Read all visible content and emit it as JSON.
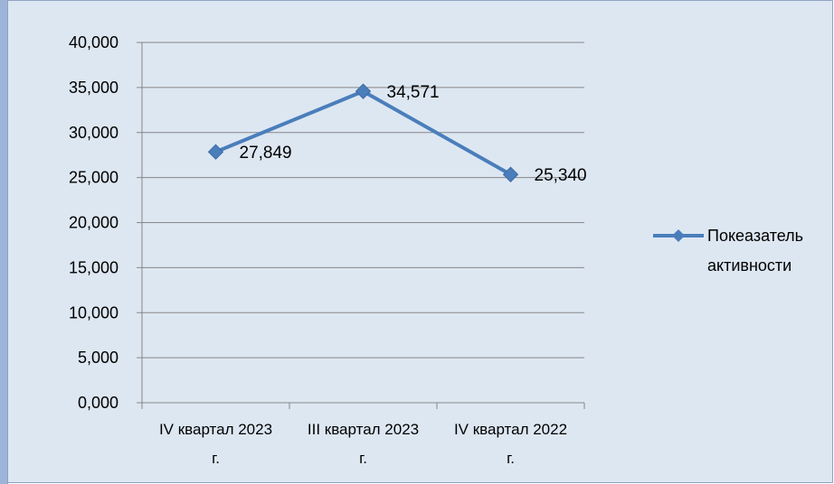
{
  "chart_data": {
    "type": "line",
    "categories": [
      "IV квартал 2023 г.",
      "III квартал 2023 г.",
      "IV квартал 2022 г."
    ],
    "category_lines": [
      [
        "IV квартал 2023",
        "г."
      ],
      [
        "III квартал 2023",
        "г."
      ],
      [
        "IV квартал 2022",
        "г."
      ]
    ],
    "series": [
      {
        "name": "Покеазатель активности",
        "name_lines": [
          "Покеазатель",
          "активности"
        ],
        "values": [
          27.849,
          34.571,
          25.34
        ],
        "labels": [
          "27,849",
          "34,571",
          "25,340"
        ],
        "color": "#4a7ebb"
      }
    ],
    "y_ticks": [
      "0,000",
      "5,000",
      "10,000",
      "15,000",
      "20,000",
      "25,000",
      "30,000",
      "35,000",
      "40,000"
    ],
    "ylim": [
      0,
      40
    ],
    "y_step": 5,
    "grid": true,
    "legend_position": "right",
    "title": "",
    "xlabel": "",
    "ylabel": ""
  }
}
